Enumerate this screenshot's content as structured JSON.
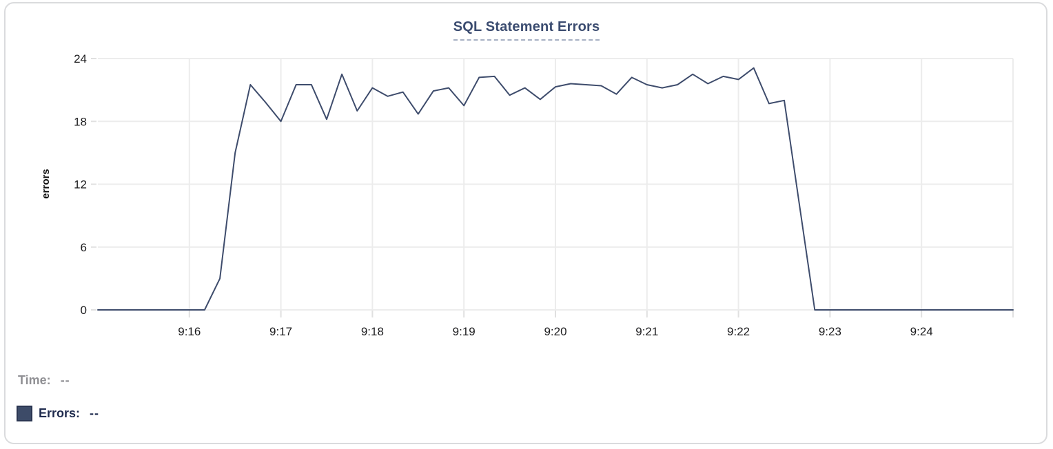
{
  "title": {
    "text": "SQL Statement Errors"
  },
  "y_axis": {
    "label": "errors"
  },
  "legend": {
    "time_label": "Time:",
    "time_value": "--",
    "errors_label": "Errors:",
    "errors_value": "--"
  },
  "colors": {
    "line": "#3e4c6c",
    "title": "#3b4c70",
    "title_underline": "#a6b0c3",
    "grid": "#ececec",
    "tick_stub": "#e0e0e0",
    "tick_text": "#1c1c1e",
    "axis_label_text": "#111111",
    "time_text": "#909094",
    "errors_text": "#1f2b4e",
    "swatch_fill": "#3d4b68",
    "swatch_border": "#2a3551",
    "card_border": "#dadbdd"
  },
  "chart_data": {
    "type": "line",
    "title": "SQL Statement Errors",
    "xlabel": "",
    "ylabel": "errors",
    "ylim": [
      0,
      24
    ],
    "y_ticks": [
      0,
      6,
      12,
      18,
      24
    ],
    "x_start": "9:15:00",
    "x_end": "9:25:00",
    "point_interval_seconds": 10,
    "x_tick_labels": [
      "9:16",
      "9:17",
      "9:18",
      "9:19",
      "9:20",
      "9:21",
      "9:22",
      "9:23",
      "9:24"
    ],
    "grid": true,
    "legend_position": "bottom-left",
    "series": [
      {
        "name": "Errors",
        "color": "#3e4c6c",
        "values": [
          0,
          0,
          0,
          0,
          0,
          0,
          0,
          0,
          3,
          15,
          21.5,
          19.8,
          18,
          21.5,
          21.5,
          18.2,
          22.5,
          19,
          21.2,
          20.4,
          20.8,
          18.7,
          20.9,
          21.2,
          19.5,
          22.2,
          22.3,
          20.5,
          21.2,
          20.1,
          21.3,
          21.6,
          21.5,
          21.4,
          20.6,
          22.2,
          21.5,
          21.2,
          21.5,
          22.5,
          21.6,
          22.3,
          22,
          23.1,
          19.7,
          20,
          10,
          0,
          0,
          0,
          0,
          0,
          0,
          0,
          0,
          0,
          0,
          0,
          0,
          0,
          0
        ]
      }
    ]
  }
}
